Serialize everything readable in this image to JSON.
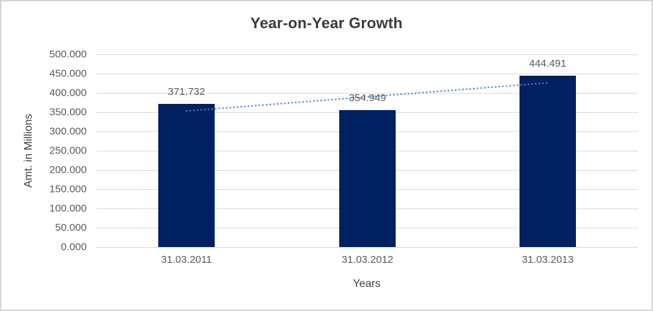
{
  "chart_data": {
    "type": "bar",
    "title": "Year-on-Year Growth",
    "xlabel": "Years",
    "ylabel": "Amt. in Millions",
    "categories": [
      "31.03.2011",
      "31.03.2012",
      "31.03.2013"
    ],
    "values": [
      371.732,
      354.949,
      444.491
    ],
    "data_labels": [
      "371.732",
      "354.949",
      "444.491"
    ],
    "ylim": [
      0,
      500
    ],
    "ytick_values": [
      0,
      50,
      100,
      150,
      200,
      250,
      300,
      350,
      400,
      450,
      500
    ],
    "ytick_labels": [
      "0.000",
      "50.000",
      "100.000",
      "150.000",
      "200.000",
      "250.000",
      "300.000",
      "350.000",
      "400.000",
      "450.000",
      "500.000"
    ],
    "grid": true,
    "legend": "none",
    "trendline": {
      "type": "linear",
      "style": "dotted",
      "color": "#4a84c9",
      "start_value": 353,
      "end_value": 426
    },
    "colors": {
      "bar": "#002060",
      "gridline": "#d9d9d9",
      "axis_line": "#d9d9d9",
      "title_text": "#3b3b3b",
      "tick_text": "#595959",
      "axis_title_text": "#404040",
      "data_label_text": "#595959",
      "frame_border": "#d5d5d5",
      "background": "#ffffff"
    }
  }
}
